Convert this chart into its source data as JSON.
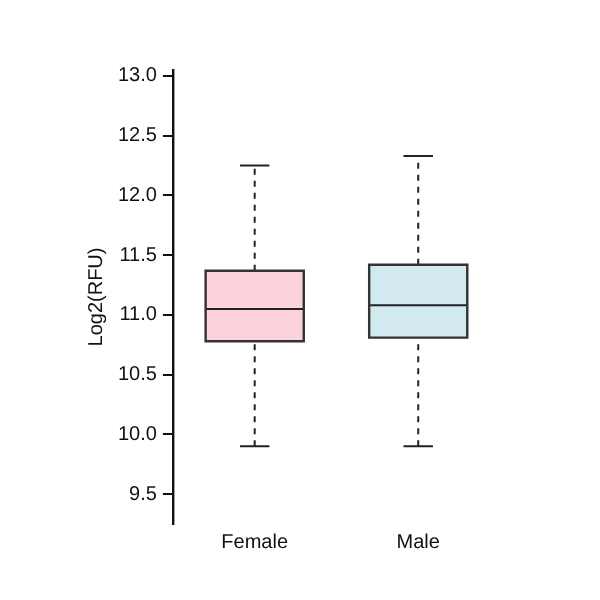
{
  "chart_data": {
    "type": "box",
    "ylabel": "Log2(RFU)",
    "categories": [
      "Female",
      "Male"
    ],
    "boxes": [
      {
        "low": 9.9,
        "q1": 10.78,
        "median": 11.05,
        "q3": 11.37,
        "high": 12.25
      },
      {
        "low": 9.9,
        "q1": 10.81,
        "median": 11.08,
        "q3": 11.42,
        "high": 12.33
      }
    ],
    "colors": [
      "#fcd3db",
      "#d3e9f0"
    ],
    "ylim": [
      9.25,
      13.05
    ],
    "yticks": [
      {
        "value": 9.5,
        "label": "9.5"
      },
      {
        "value": 10,
        "label": "10.0"
      },
      {
        "value": 10.5,
        "label": "10.5"
      },
      {
        "value": 11,
        "label": "11.0"
      },
      {
        "value": 11.5,
        "label": "11.5"
      },
      {
        "value": 12,
        "label": "12.0"
      },
      {
        "value": 12.5,
        "label": "12.5"
      },
      {
        "value": 13,
        "label": "13.0"
      }
    ],
    "grid": false,
    "legend": false
  }
}
